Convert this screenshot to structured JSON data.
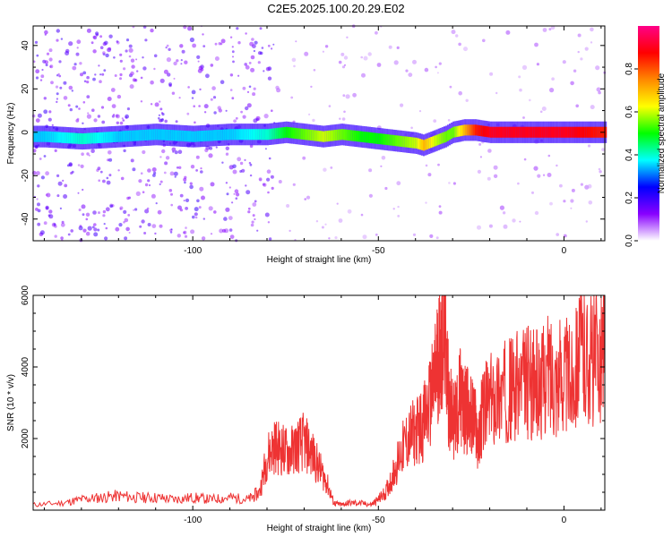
{
  "figure_title": "C2E5.2025.100.20.29.E02",
  "chart_data": [
    {
      "type": "heatmap",
      "title": "C2E5.2025.100.20.29.E02",
      "xlabel": "Height of straight line (km)",
      "ylabel": "Frequency (Hz)",
      "xlim": [
        -143,
        11
      ],
      "ylim": [
        -50,
        49
      ],
      "x_ticks": [
        -100,
        -50,
        0
      ],
      "y_ticks": [
        -40,
        -20,
        0,
        20,
        40
      ],
      "colorbar": {
        "label": "Normalized spectral amplitude",
        "range": [
          0,
          1
        ],
        "ticks": [
          0.0,
          0.2,
          0.4,
          0.6,
          0.8
        ],
        "colors": [
          "#ffffff",
          "#8800ff",
          "#0000ff",
          "#00ffff",
          "#00ff00",
          "#ffff00",
          "#ff8800",
          "#ff0000",
          "#ff0088"
        ]
      },
      "ridge": {
        "x": [
          -140,
          -130,
          -120,
          -110,
          -100,
          -90,
          -80,
          -75,
          -70,
          -65,
          -60,
          -55,
          -50,
          -45,
          -40,
          -38,
          -35,
          -32,
          -30,
          -27,
          -24,
          -20,
          -10,
          0,
          10
        ],
        "frequency": [
          -2,
          -3,
          -2,
          -1,
          -2,
          -1,
          -1,
          0,
          -1,
          -2,
          -1,
          -2,
          -3,
          -4,
          -5,
          -6,
          -4,
          -2,
          0,
          1,
          1,
          0,
          0,
          0,
          0
        ],
        "amplitude": [
          0.35,
          0.4,
          0.35,
          0.35,
          0.35,
          0.35,
          0.4,
          0.5,
          0.55,
          0.6,
          0.55,
          0.5,
          0.5,
          0.55,
          0.6,
          0.7,
          0.6,
          0.55,
          0.55,
          0.7,
          0.85,
          0.9,
          0.9,
          0.9,
          0.85
        ]
      }
    },
    {
      "type": "line",
      "xlabel": "Height of straight line (km)",
      "ylabel": "SNR (10 * v/v)",
      "xlim": [
        -143,
        11
      ],
      "ylim": [
        0,
        6000
      ],
      "x_ticks": [
        -100,
        -50,
        0
      ],
      "y_ticks": [
        2000,
        4000,
        6000
      ],
      "color": "#ee3333",
      "x": [
        -143,
        -135,
        -130,
        -125,
        -120,
        -115,
        -110,
        -105,
        -100,
        -95,
        -90,
        -85,
        -82,
        -80,
        -78,
        -76,
        -74,
        -72,
        -70,
        -68,
        -66,
        -64,
        -62,
        -60,
        -58,
        -55,
        -52,
        -50,
        -48,
        -46,
        -44,
        -42,
        -40,
        -38,
        -36,
        -35,
        -34,
        -33,
        -32,
        -31,
        -30,
        -29,
        -28,
        -27,
        -26,
        -25,
        -24,
        -23,
        -22,
        -20,
        -18,
        -16,
        -14,
        -12,
        -10,
        -8,
        -6,
        -4,
        -2,
        0,
        2,
        4,
        6,
        8,
        10,
        11
      ],
      "values": [
        150,
        200,
        300,
        350,
        400,
        350,
        350,
        300,
        350,
        300,
        350,
        300,
        500,
        1500,
        1800,
        1700,
        1600,
        1800,
        1900,
        1600,
        1200,
        800,
        200,
        150,
        200,
        200,
        150,
        300,
        500,
        1000,
        1600,
        2000,
        2200,
        2400,
        3000,
        3500,
        4200,
        4800,
        5200,
        3000,
        2500,
        2600,
        3200,
        2800,
        2800,
        2600,
        2500,
        1800,
        2800,
        3000,
        3200,
        3300,
        3400,
        3500,
        3600,
        3500,
        3500,
        3900,
        3700,
        3800,
        3600,
        4500,
        4300,
        4200,
        4400,
        4600
      ]
    }
  ]
}
